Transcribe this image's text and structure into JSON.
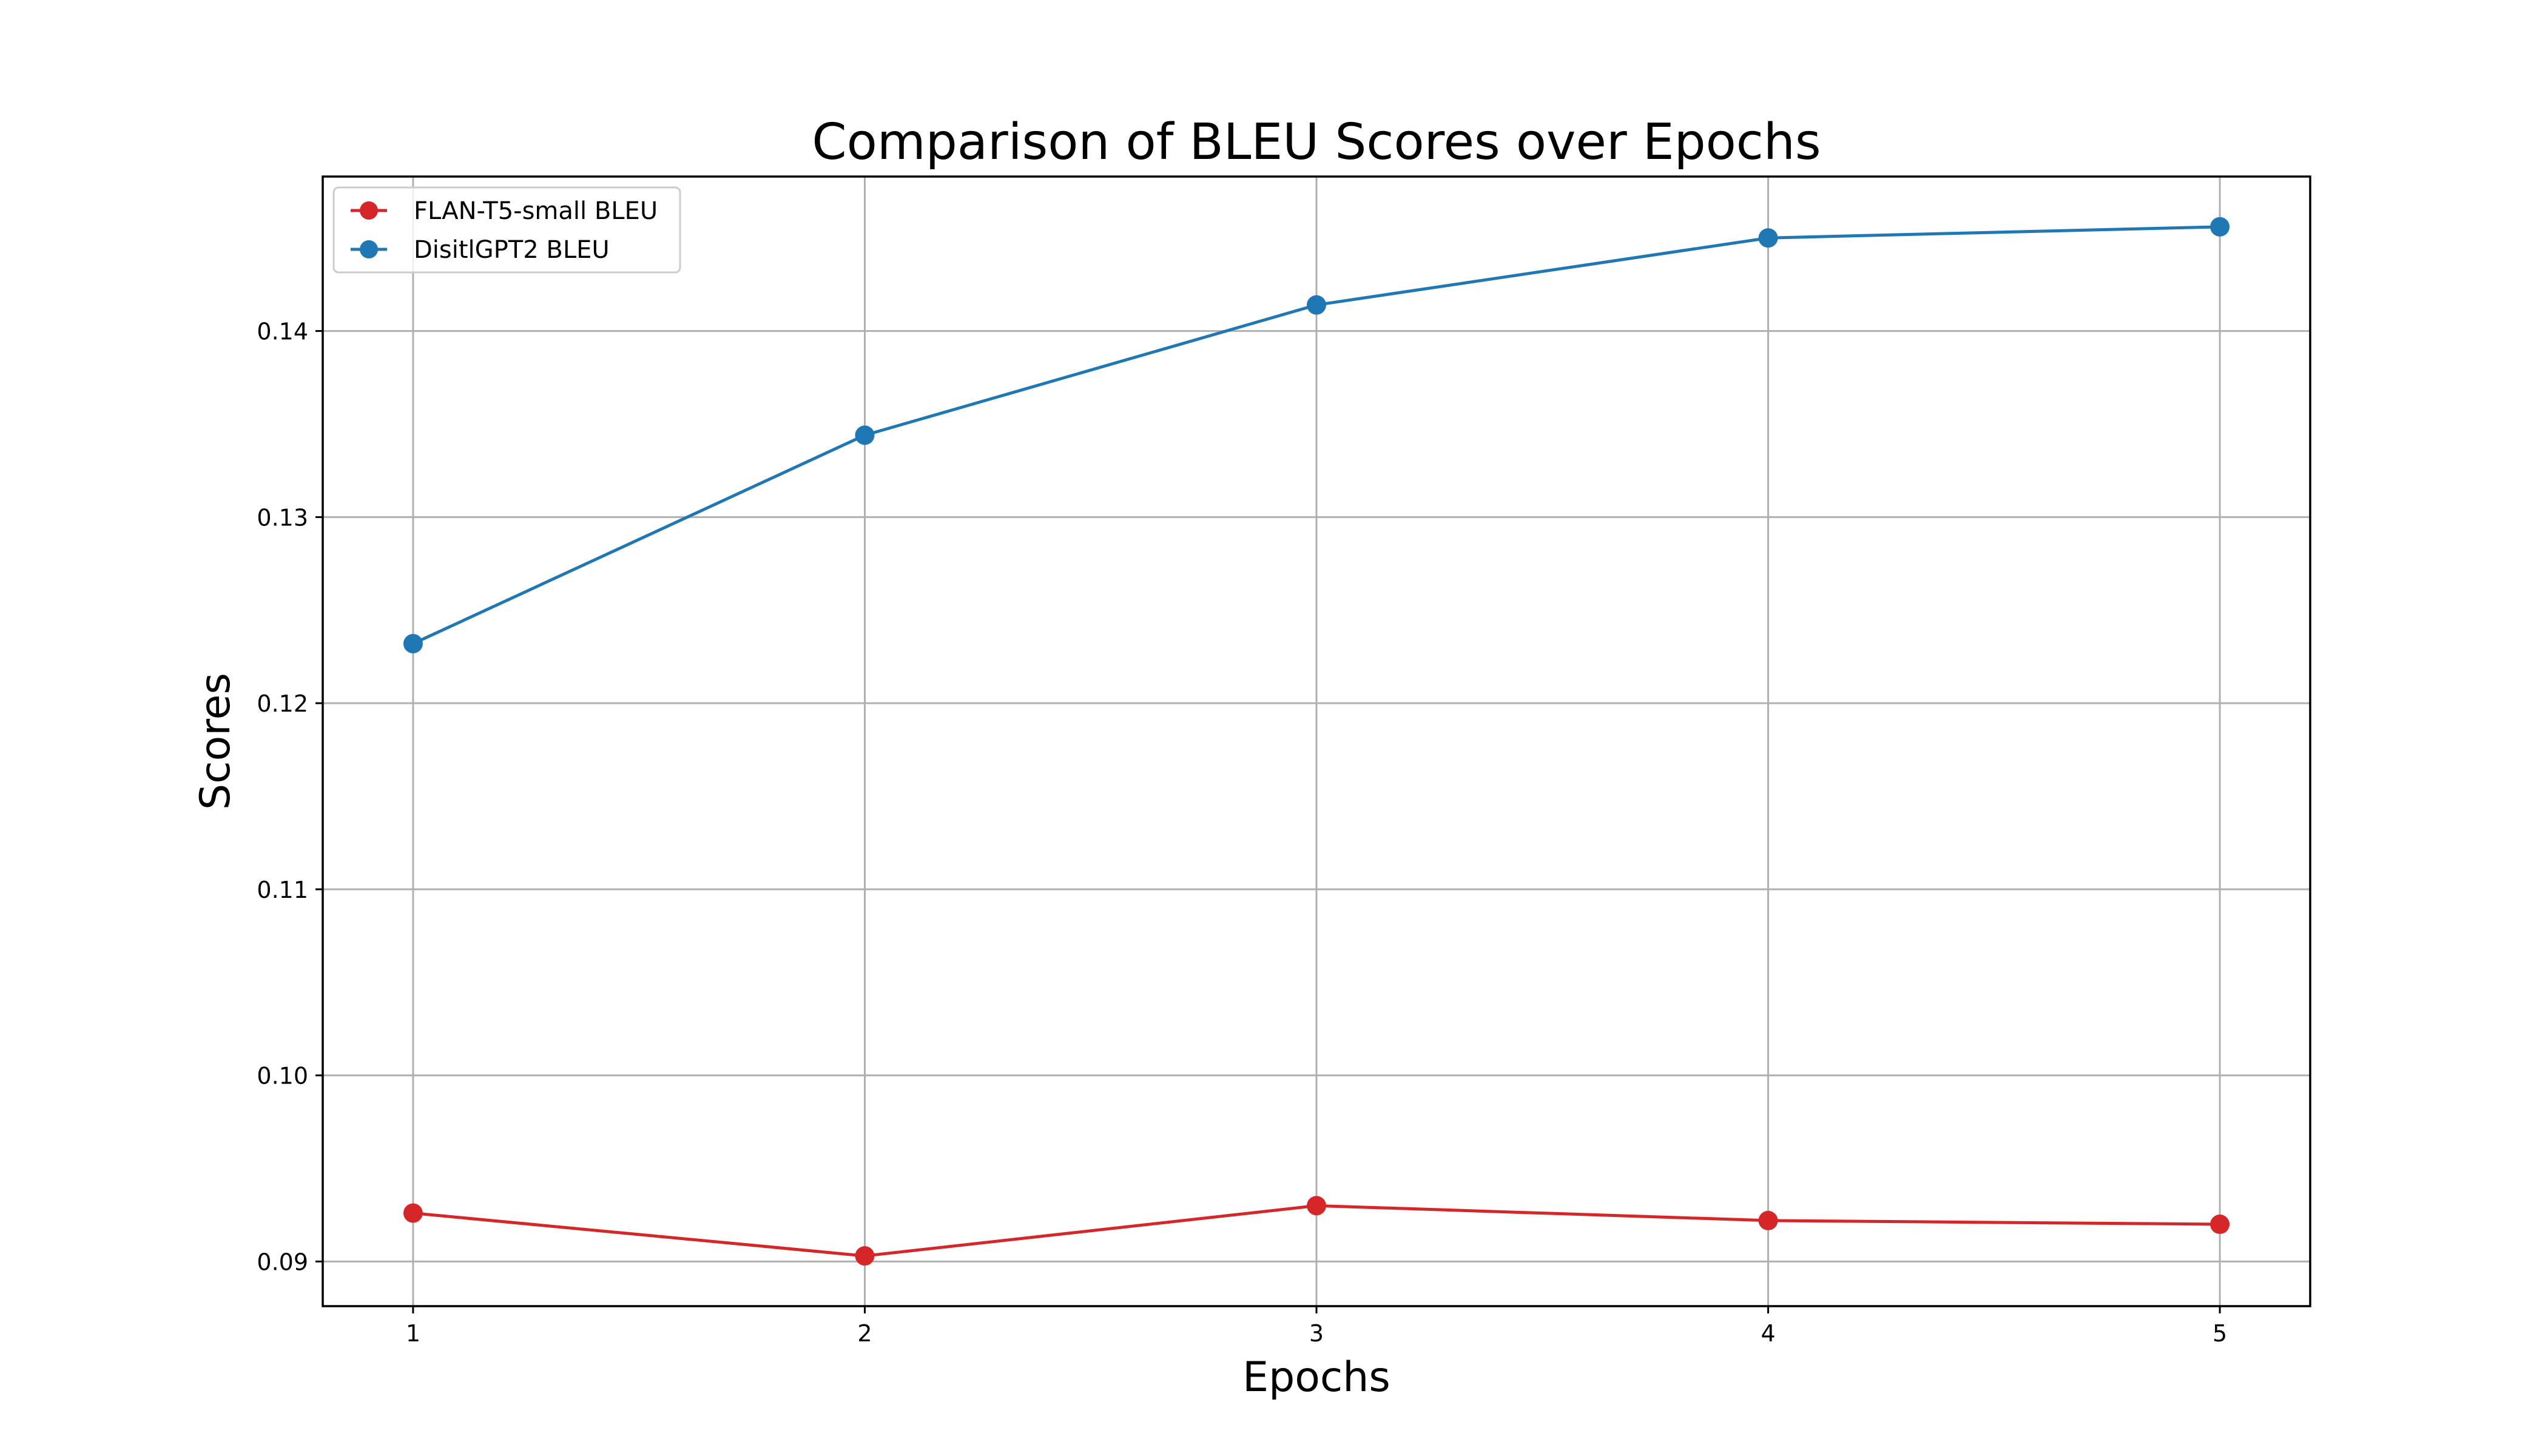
{
  "chart_data": {
    "type": "line",
    "title": "Comparison of BLEU Scores over Epochs",
    "xlabel": "Epochs",
    "ylabel": "Scores",
    "x": [
      1,
      2,
      3,
      4,
      5
    ],
    "xlim": [
      0.8,
      5.2
    ],
    "ylim": [
      0.0876,
      0.1483
    ],
    "xticks": [
      1,
      2,
      3,
      4,
      5
    ],
    "xtick_labels": [
      "1",
      "2",
      "3",
      "4",
      "5"
    ],
    "yticks": [
      0.09,
      0.1,
      0.11,
      0.12,
      0.13,
      0.14
    ],
    "ytick_labels": [
      "0.09",
      "0.10",
      "0.11",
      "0.12",
      "0.13",
      "0.14"
    ],
    "grid": true,
    "legend_position": "upper-left",
    "series": [
      {
        "name": "FLAN-T5-small BLEU",
        "color": "#d62728",
        "marker": "circle",
        "values": [
          0.0926,
          0.0903,
          0.093,
          0.0922,
          0.092
        ]
      },
      {
        "name": "DisitlGPT2 BLEU",
        "color": "#1f77b4",
        "marker": "circle",
        "values": [
          0.1232,
          0.1344,
          0.1414,
          0.145,
          0.1456
        ]
      }
    ]
  }
}
